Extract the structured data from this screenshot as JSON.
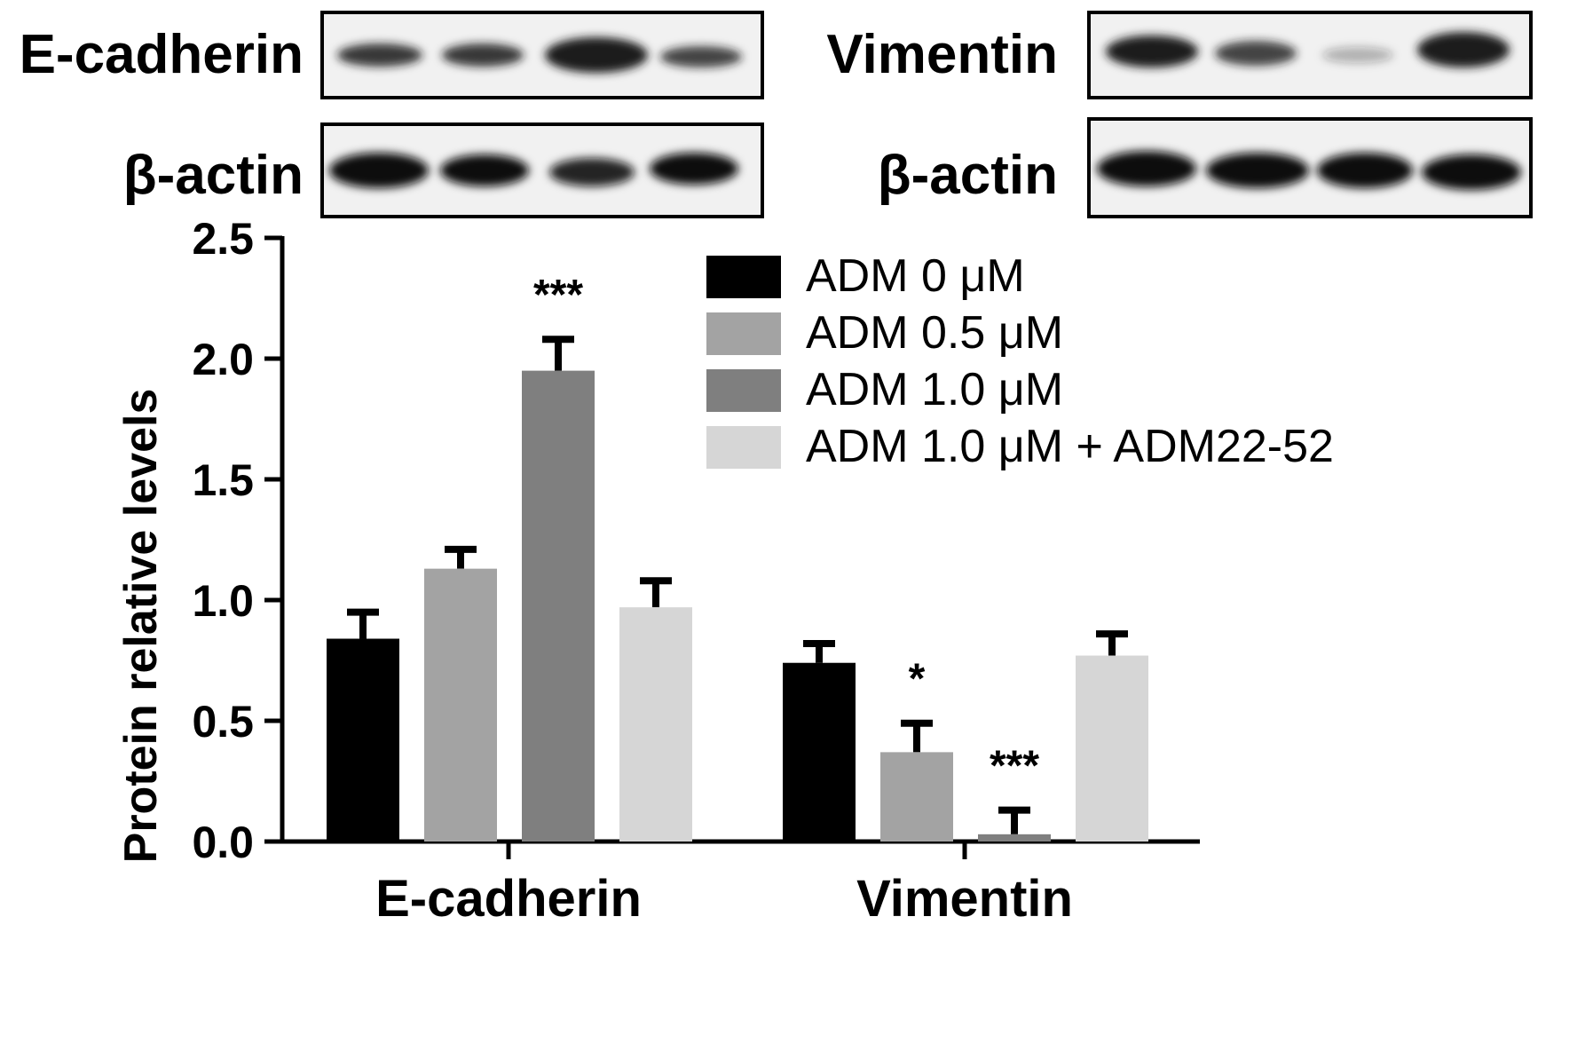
{
  "blots": {
    "left": {
      "protein_label": "E-cadherin",
      "control_label": "β-actin"
    },
    "right": {
      "protein_label": "Vimentin",
      "control_label": "β-actin"
    }
  },
  "chart_data": {
    "type": "bar",
    "categories": [
      "E-cadherin",
      "Vimentin"
    ],
    "series": [
      {
        "name": "ADM 0 μM",
        "color": "#000000",
        "values": [
          0.84,
          0.74
        ],
        "errors": [
          0.11,
          0.08
        ],
        "significance": [
          "",
          ""
        ]
      },
      {
        "name": "ADM 0.5 μM",
        "color": "#a3a3a3",
        "values": [
          1.13,
          0.37
        ],
        "errors": [
          0.08,
          0.12
        ],
        "significance": [
          "",
          "*"
        ]
      },
      {
        "name": "ADM 1.0 μM",
        "color": "#7f7f7f",
        "values": [
          1.95,
          0.03
        ],
        "errors": [
          0.13,
          0.1
        ],
        "significance": [
          "***",
          "***"
        ]
      },
      {
        "name": "ADM 1.0 μM + ADM22-52",
        "color": "#d6d6d6",
        "values": [
          0.97,
          0.77
        ],
        "errors": [
          0.11,
          0.09
        ],
        "significance": [
          "",
          ""
        ]
      }
    ],
    "ylabel": "Protein relative levels",
    "xlabel": "",
    "ylim": [
      0,
      2.5
    ],
    "yticks": [
      "0.0",
      "0.5",
      "1.0",
      "1.5",
      "2.0",
      "2.5"
    ],
    "legend_position": "top-right",
    "grid": false
  }
}
